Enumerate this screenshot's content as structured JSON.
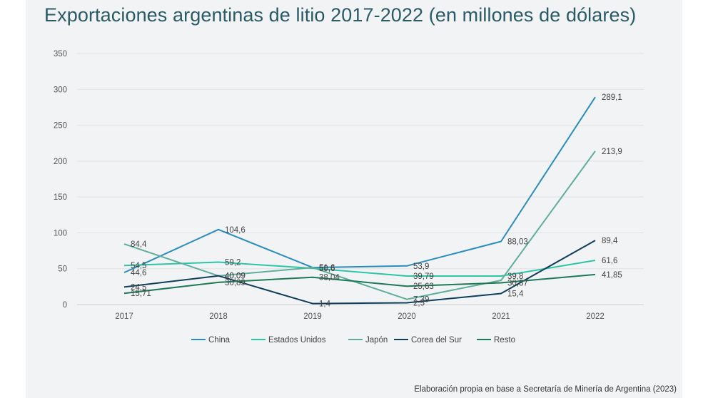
{
  "title": "Exportaciones argentinas de litio 2017-2022 (en millones de dólares)",
  "source": "Elaboración propia en base a Secretaría de Minería de Argentina (2023)",
  "chart_data": {
    "type": "line",
    "title": "Exportaciones argentinas de litio 2017-2022 (en millones de dólares)",
    "xlabel": "",
    "ylabel": "",
    "categories": [
      "2017",
      "2018",
      "2019",
      "2020",
      "2021",
      "2022"
    ],
    "ylim": [
      0,
      350
    ],
    "yticks": [
      0,
      50,
      100,
      150,
      200,
      250,
      300,
      350
    ],
    "grid": true,
    "legend_position": "bottom",
    "series": [
      {
        "name": "China",
        "color": "#2b8cbe",
        "values": [
          44.6,
          104.6,
          51.6,
          53.9,
          88.03,
          289.1
        ],
        "labels": [
          "44,6",
          "104,6",
          "51,6",
          "53,9",
          "88,03",
          "289,1"
        ]
      },
      {
        "name": "Estados Unidos",
        "color": "#2ec4a6",
        "values": [
          54.5,
          59.2,
          50.6,
          39.79,
          39.8,
          61.6
        ],
        "labels": [
          "54,5",
          "59,2",
          "50,6",
          "39,79",
          "39,8",
          "61,6"
        ]
      },
      {
        "name": "Japón",
        "color": "#5fae9a",
        "values": [
          84.4,
          40.09,
          51.6,
          7.39,
          33.8,
          213.9
        ],
        "labels": [
          "84,4",
          "40,09",
          "",
          "7,39",
          "",
          "213,9"
        ]
      },
      {
        "name": "Corea del Sur",
        "color": "#0f3f5c",
        "values": [
          24.5,
          40.09,
          1.4,
          2.5,
          15.4,
          89.4
        ],
        "labels": [
          "24,5",
          "40,09",
          "1,4",
          "2,5",
          "15,4",
          "89,4"
        ]
      },
      {
        "name": "Resto",
        "color": "#1e7a55",
        "values": [
          15.71,
          30.89,
          38.04,
          25.63,
          30.37,
          41.85
        ],
        "labels": [
          "15,71",
          "30,89",
          "38,04",
          "25,63",
          "30,37",
          "41,85"
        ]
      }
    ]
  }
}
